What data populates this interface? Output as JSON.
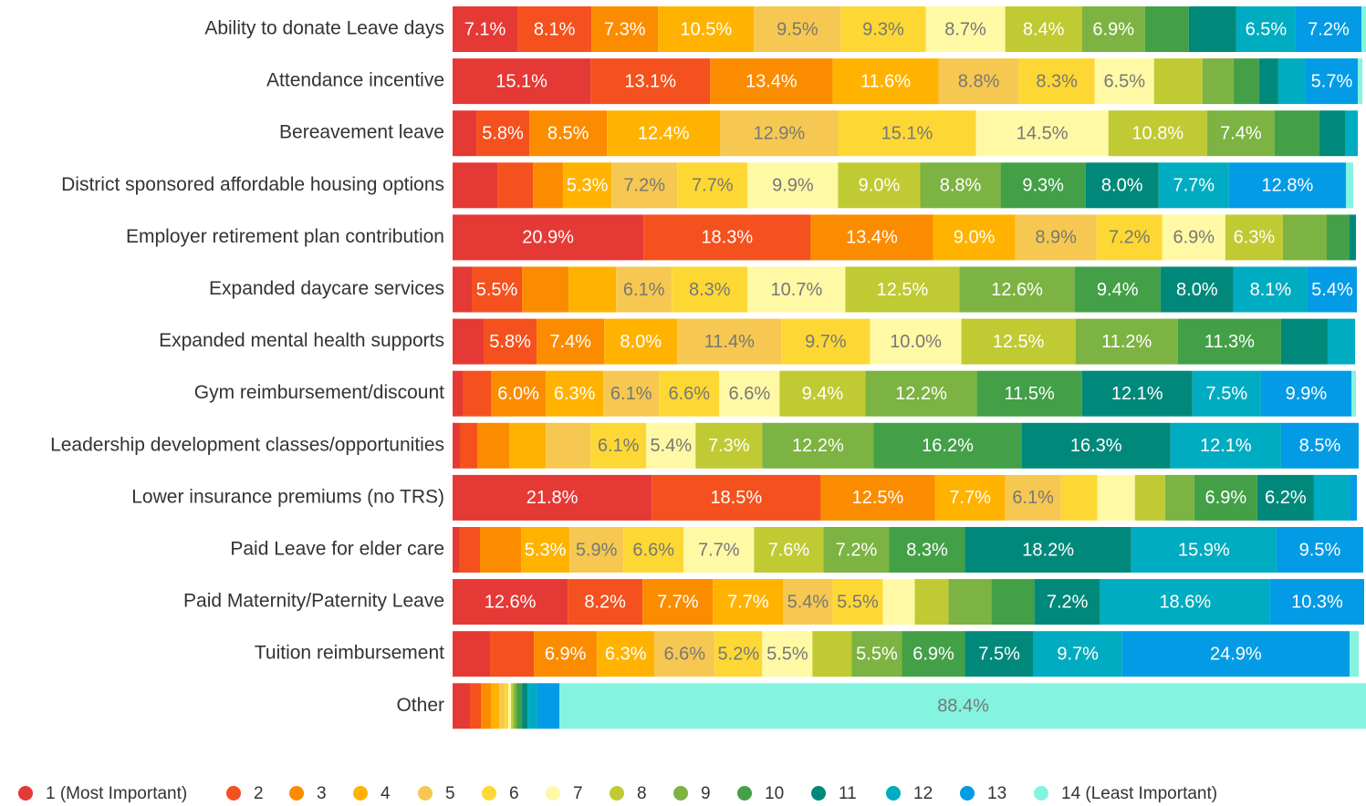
{
  "chart_data": {
    "type": "stacked-bar-horizontal",
    "categories": [
      "Ability to donate Leave days",
      "Attendance incentive",
      "Bereavement leave",
      "District sponsored affordable housing options",
      "Employer retirement plan contribution",
      "Expanded daycare services",
      "Expanded mental health supports",
      "Gym reimbursement/discount",
      "Leadership development classes/opportunities",
      "Lower insurance premiums (no TRS)",
      "Paid Leave for elder care",
      "Paid Maternity/Paternity Leave",
      "Tuition reimbursement",
      "Other"
    ],
    "xlim": [
      0,
      100
    ],
    "legend": "bottom",
    "series": [
      {
        "name": "1 (Most Important)",
        "color": "#e53935",
        "values": [
          7.1,
          15.1,
          2.6,
          4.9,
          20.9,
          2.1,
          3.4,
          1.1,
          0.8,
          21.8,
          0.7,
          12.6,
          4.1,
          1.9
        ],
        "value_labels": [
          "7.1%",
          "15.1%",
          null,
          null,
          "20.9%",
          null,
          null,
          null,
          null,
          "21.8%",
          null,
          "12.6%",
          null,
          null
        ]
      },
      {
        "name": "2",
        "color": "#f4511e",
        "values": [
          8.1,
          13.1,
          5.8,
          3.9,
          18.3,
          5.5,
          5.8,
          3.1,
          1.9,
          18.5,
          2.3,
          8.2,
          4.8,
          1.2
        ],
        "value_labels": [
          "8.1%",
          "13.1%",
          "5.8%",
          null,
          "18.3%",
          "5.5%",
          "5.8%",
          null,
          null,
          "18.5%",
          null,
          "8.2%",
          null,
          null
        ]
      },
      {
        "name": "3",
        "color": "#fb8c00",
        "values": [
          7.3,
          13.4,
          8.5,
          3.3,
          13.4,
          5.1,
          7.4,
          6.0,
          3.5,
          12.5,
          4.5,
          7.7,
          6.9,
          1.1
        ],
        "value_labels": [
          "7.3%",
          "13.4%",
          "8.5%",
          null,
          "13.4%",
          null,
          "7.4%",
          "6.0%",
          null,
          "12.5%",
          null,
          "7.7%",
          "6.9%",
          null
        ]
      },
      {
        "name": "4",
        "color": "#ffb300",
        "values": [
          10.5,
          11.6,
          12.4,
          5.3,
          9.0,
          5.2,
          8.0,
          6.3,
          4.0,
          7.7,
          5.3,
          7.7,
          6.3,
          0.9
        ],
        "value_labels": [
          "10.5%",
          "11.6%",
          "12.4%",
          "5.3%",
          "9.0%",
          null,
          "8.0%",
          "6.3%",
          null,
          "7.7%",
          "5.3%",
          "7.7%",
          "6.3%",
          null
        ]
      },
      {
        "name": "5",
        "color": "#f6c851",
        "values": [
          9.5,
          8.8,
          12.9,
          7.2,
          8.9,
          6.1,
          11.4,
          6.1,
          4.9,
          6.1,
          5.9,
          5.4,
          6.6,
          0.6
        ],
        "value_labels": [
          "9.5%",
          "8.8%",
          "12.9%",
          "7.2%",
          "8.9%",
          "6.1%",
          "11.4%",
          "6.1%",
          null,
          "6.1%",
          "5.9%",
          "5.4%",
          "6.6%",
          null
        ]
      },
      {
        "name": "6",
        "color": "#fdd835",
        "values": [
          9.3,
          8.3,
          15.1,
          7.7,
          7.2,
          8.3,
          9.7,
          6.6,
          6.1,
          4.0,
          6.6,
          5.5,
          5.2,
          0.4
        ],
        "value_labels": [
          "9.3%",
          "8.3%",
          "15.1%",
          "7.7%",
          "7.2%",
          "8.3%",
          "9.7%",
          "6.6%",
          "6.1%",
          null,
          "6.6%",
          "5.5%",
          "5.2%",
          null
        ]
      },
      {
        "name": "7",
        "color": "#fff9a6",
        "values": [
          8.7,
          6.5,
          14.5,
          9.9,
          6.9,
          10.7,
          10.0,
          6.6,
          5.4,
          4.1,
          7.7,
          3.5,
          5.5,
          0.3
        ],
        "value_labels": [
          "8.7%",
          "6.5%",
          "14.5%",
          "9.9%",
          "6.9%",
          "10.7%",
          "10.0%",
          "6.6%",
          "5.4%",
          null,
          "7.7%",
          null,
          "5.5%",
          null
        ]
      },
      {
        "name": "8",
        "color": "#c0ca33",
        "values": [
          8.4,
          5.3,
          10.8,
          9.0,
          6.3,
          12.5,
          12.5,
          9.4,
          7.3,
          3.3,
          7.6,
          3.7,
          4.3,
          0.3
        ],
        "value_labels": [
          "8.4%",
          null,
          "10.8%",
          "9.0%",
          "6.3%",
          "12.5%",
          "12.5%",
          "9.4%",
          "7.3%",
          null,
          "7.6%",
          null,
          null,
          null
        ]
      },
      {
        "name": "9",
        "color": "#7cb342",
        "values": [
          6.9,
          3.4,
          7.4,
          8.8,
          4.8,
          12.6,
          11.2,
          12.2,
          12.2,
          3.2,
          7.2,
          4.7,
          5.5,
          0.3
        ],
        "value_labels": [
          "6.9%",
          null,
          "7.4%",
          "8.8%",
          null,
          "12.6%",
          "11.2%",
          "12.2%",
          "12.2%",
          null,
          "7.2%",
          null,
          "5.5%",
          null
        ]
      },
      {
        "name": "10",
        "color": "#43a047",
        "values": [
          4.8,
          2.8,
          4.9,
          9.3,
          2.5,
          9.4,
          11.3,
          11.5,
          16.2,
          6.9,
          8.3,
          4.7,
          6.9,
          0.6
        ],
        "value_labels": [
          null,
          null,
          null,
          "9.3%",
          null,
          "9.4%",
          "11.3%",
          "11.5%",
          "16.2%",
          "6.9%",
          "8.3%",
          null,
          "6.9%",
          null
        ]
      },
      {
        "name": "11",
        "color": "#00897b",
        "values": [
          5.2,
          2.1,
          2.8,
          8.0,
          0.7,
          8.0,
          5.1,
          12.1,
          16.3,
          6.2,
          18.2,
          7.2,
          7.5,
          0.6
        ],
        "value_labels": [
          null,
          null,
          null,
          "8.0%",
          null,
          "8.0%",
          null,
          "12.1%",
          "16.3%",
          "6.2%",
          "18.2%",
          "7.2%",
          "7.5%",
          null
        ]
      },
      {
        "name": "12",
        "color": "#00acc1",
        "values": [
          6.5,
          3.0,
          1.4,
          7.7,
          0,
          8.1,
          3.0,
          7.5,
          12.1,
          4.0,
          15.9,
          18.6,
          9.7,
          1.0
        ],
        "value_labels": [
          "6.5%",
          null,
          null,
          "7.7%",
          null,
          "8.1%",
          null,
          "7.5%",
          "12.1%",
          null,
          "15.9%",
          "18.6%",
          "9.7%",
          null
        ]
      },
      {
        "name": "13",
        "color": "#039be5",
        "values": [
          7.2,
          5.7,
          0,
          12.8,
          0,
          5.4,
          0,
          9.9,
          8.5,
          0.7,
          9.5,
          10.3,
          24.9,
          2.5
        ],
        "value_labels": [
          "7.2%",
          "5.7%",
          null,
          "12.8%",
          null,
          "5.4%",
          null,
          "9.9%",
          "8.5%",
          null,
          "9.5%",
          "10.3%",
          "24.9%",
          null
        ]
      },
      {
        "name": "14 (Least Important)",
        "color": "#84f4e0",
        "values": [
          0.5,
          0.5,
          0,
          0.8,
          0,
          0,
          0,
          0.5,
          0,
          0,
          0,
          0,
          1.0,
          88.4
        ],
        "value_labels": [
          null,
          null,
          null,
          null,
          null,
          null,
          null,
          null,
          null,
          null,
          null,
          null,
          null,
          "88.4%"
        ]
      }
    ]
  }
}
